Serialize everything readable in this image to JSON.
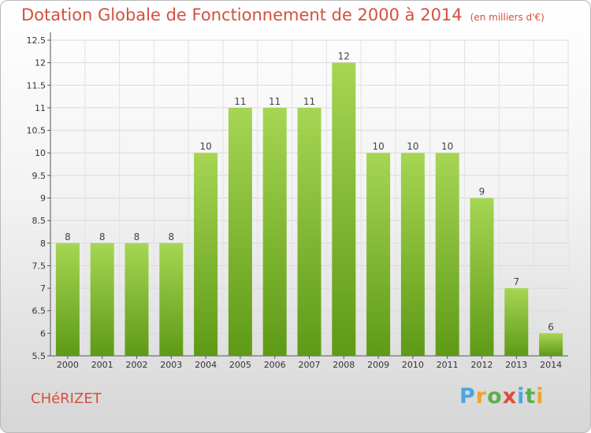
{
  "title": "Dotation Globale de Fonctionnement de 2000 à 2014",
  "unit": "(en milliers d'€)",
  "commune": "CHéRIZET",
  "logo": {
    "letters": [
      "P",
      "r",
      "o",
      "x",
      "i",
      "t",
      "i"
    ],
    "colors": [
      "#4aa6e0",
      "#f0a330",
      "#5bb04c",
      "#e04a3a",
      "#4aa6e0",
      "#5bb04c",
      "#f0a330"
    ]
  },
  "colors": {
    "accent": "#d4503f",
    "bar_light": "#a6d653",
    "bar_dark": "#5e9a16"
  },
  "chart_data": {
    "type": "bar",
    "title": "Dotation Globale de Fonctionnement de 2000 à 2014",
    "subtitle": "(en milliers d'€)",
    "categories": [
      "2000",
      "2001",
      "2002",
      "2003",
      "2004",
      "2005",
      "2006",
      "2007",
      "2008",
      "2009",
      "2010",
      "2011",
      "2012",
      "2013",
      "2014"
    ],
    "values": [
      8,
      8,
      8,
      8,
      10,
      11,
      11,
      11,
      12,
      10,
      10,
      10,
      9,
      7,
      6
    ],
    "data_labels": [
      "8",
      "8",
      "8",
      "8",
      "10",
      "11",
      "11",
      "11",
      "12",
      "10",
      "10",
      "10",
      "9",
      "7",
      "6"
    ],
    "ylim": [
      5.5,
      12.5
    ],
    "yticks": [
      "5.5",
      "6",
      "6.5",
      "7",
      "7.5",
      "8",
      "8.5",
      "9",
      "9.5",
      "10",
      "10.5",
      "11",
      "11.5",
      "12",
      "12.5"
    ],
    "grid": true
  }
}
